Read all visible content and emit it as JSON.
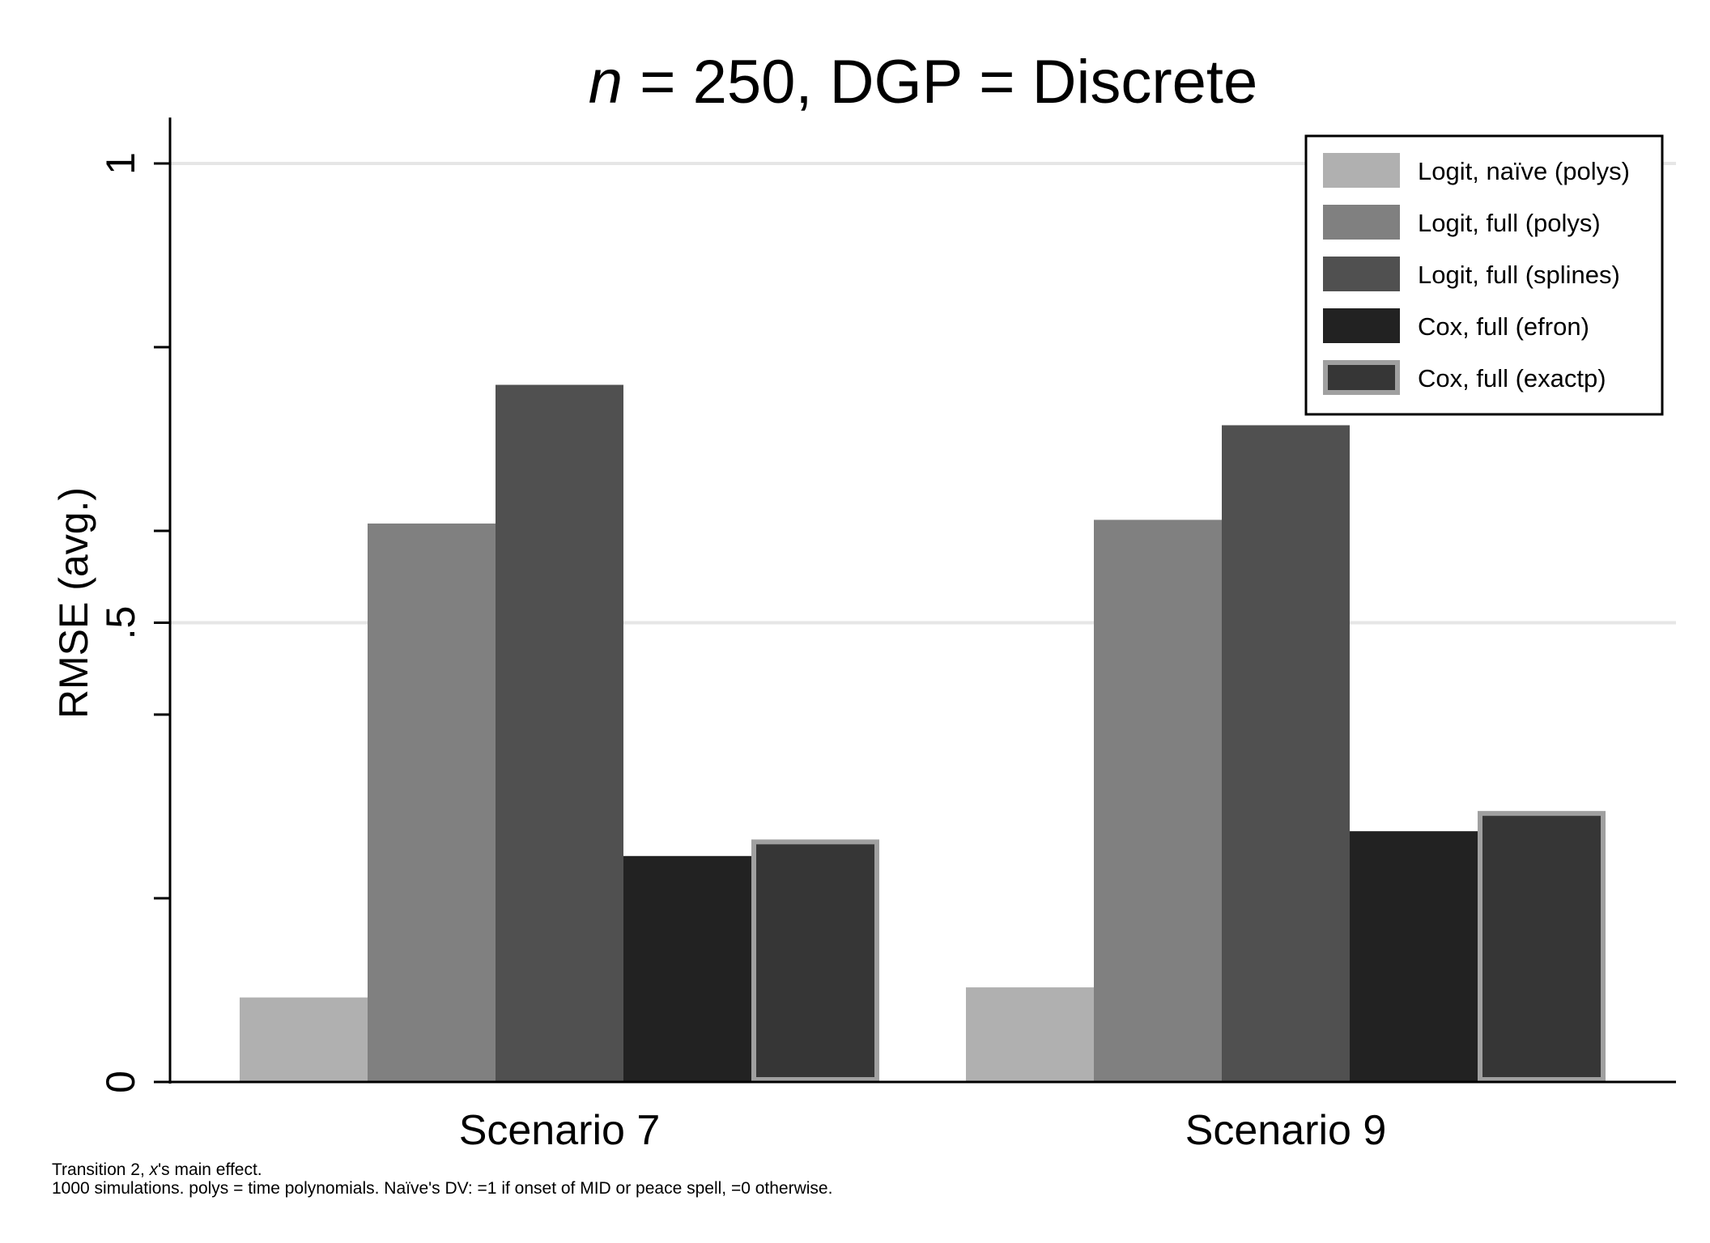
{
  "chart_data": {
    "type": "bar",
    "title_italic": "n",
    "title_rest": " = 250, DGP = Discrete",
    "ylabel": "RMSE (avg.)",
    "xlabel": "",
    "ylim": [
      0,
      1.05
    ],
    "yticks": [
      0,
      0.5,
      1
    ],
    "ytick_labels": [
      "0",
      ".5",
      "1"
    ],
    "ytick_minor": [
      0.2,
      0.4,
      0.6,
      0.8
    ],
    "grid": true,
    "legend_position": "top-right",
    "categories": [
      "Scenario 7",
      "Scenario 9"
    ],
    "series": [
      {
        "name": "Logit, naïve (polys)",
        "values": [
          0.092,
          0.103
        ],
        "color": "#b0b0b0",
        "outline": false
      },
      {
        "name": "Logit, full (polys)",
        "values": [
          0.608,
          0.612
        ],
        "color": "#808080",
        "outline": false
      },
      {
        "name": "Logit, full (splines)",
        "values": [
          0.759,
          0.715
        ],
        "color": "#505050",
        "outline": false
      },
      {
        "name": "Cox, full (efron)",
        "values": [
          0.246,
          0.273
        ],
        "color": "#222222",
        "outline": false
      },
      {
        "name": "Cox, full (exactp)",
        "values": [
          0.264,
          0.295
        ],
        "color": "#363636",
        "outline": true,
        "outline_color": "#a0a0a0"
      }
    ],
    "notes": {
      "line1_pre": "Transition 2, ",
      "line1_italic": "x",
      "line1_post": "'s main effect.",
      "line2": "1000 simulations.  polys = time polynomials.  Naïve's DV: =1 if onset of MID or peace spell, =0 otherwise."
    }
  }
}
